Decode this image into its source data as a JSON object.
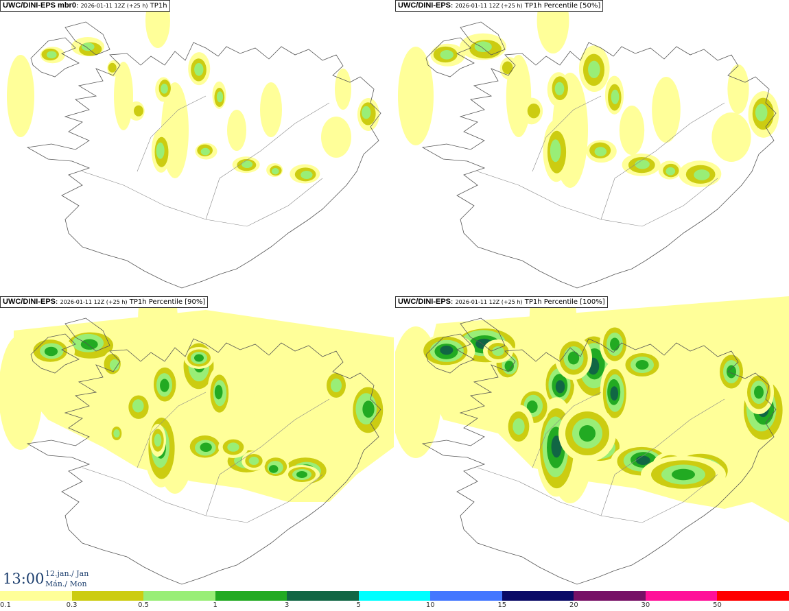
{
  "panels": [
    {
      "id": "p0",
      "model": "UWC/DINI-EPS",
      "member": " mbr0",
      "run": "2026-01-11 12Z (+25 h)",
      "variable": "TP1h",
      "intensity": 0
    },
    {
      "id": "p1",
      "model": "UWC/DINI-EPS",
      "member": "",
      "run": "2026-01-11 12Z (+25 h)",
      "variable": "TP1h Percentile [50%]",
      "intensity": 1
    },
    {
      "id": "p2",
      "model": "UWC/DINI-EPS",
      "member": "",
      "run": "2026-01-11 12Z (+25 h)",
      "variable": "TP1h Percentile [90%]",
      "intensity": 2
    },
    {
      "id": "p3",
      "model": "UWC/DINI-EPS",
      "member": "",
      "run": "2026-01-11 12Z (+25 h)",
      "variable": "TP1h Percentile [100%]",
      "intensity": 3
    }
  ],
  "valid_time": {
    "time": "13:00",
    "date_line1": "12.jan./ Jan",
    "date_line2": "Mán./ Mon"
  },
  "colorbar": {
    "segments": [
      {
        "from": "0.1",
        "color": "#ffff99"
      },
      {
        "from": "0.3",
        "color": "#cccc11"
      },
      {
        "from": "0.5",
        "color": "#99ee77"
      },
      {
        "from": "1",
        "color": "#22aa22"
      },
      {
        "from": "3",
        "color": "#116644"
      },
      {
        "from": "5",
        "color": "#00ffff"
      },
      {
        "from": "10",
        "color": "#4477ff"
      },
      {
        "from": "15",
        "color": "#0a0a66"
      },
      {
        "from": "20",
        "color": "#771166"
      },
      {
        "from": "30",
        "color": "#ff1199"
      },
      {
        "from": "50",
        "color": "#ff0000"
      }
    ]
  },
  "colors": {
    "coast": "#555555",
    "bg": "#ffffff"
  }
}
